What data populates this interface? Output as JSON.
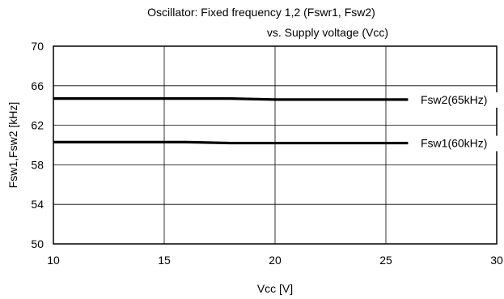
{
  "chart_data": {
    "type": "line",
    "title_line1": "Oscillator: Fixed frequency 1,2 (Fswr1, Fsw2)",
    "title_line2": "vs. Supply voltage (Vcc)",
    "xlabel": "Vcc [V]",
    "ylabel": "Fsw1,Fsw2 [kHz]",
    "xlim": [
      10,
      30
    ],
    "ylim": [
      50,
      70
    ],
    "xticks": [
      10,
      15,
      20,
      25,
      30
    ],
    "yticks": [
      50,
      54,
      58,
      62,
      66,
      70
    ],
    "grid": true,
    "legend": "none",
    "series": [
      {
        "name": "Fsw2(65kHz)",
        "color": "#000000",
        "x": [
          10,
          18,
          20,
          26
        ],
        "y": [
          64.7,
          64.7,
          64.6,
          64.6
        ]
      },
      {
        "name": "Fsw1(60kHz)",
        "color": "#000000",
        "x": [
          10,
          16,
          18,
          26
        ],
        "y": [
          60.3,
          60.3,
          60.2,
          60.2
        ]
      }
    ]
  }
}
